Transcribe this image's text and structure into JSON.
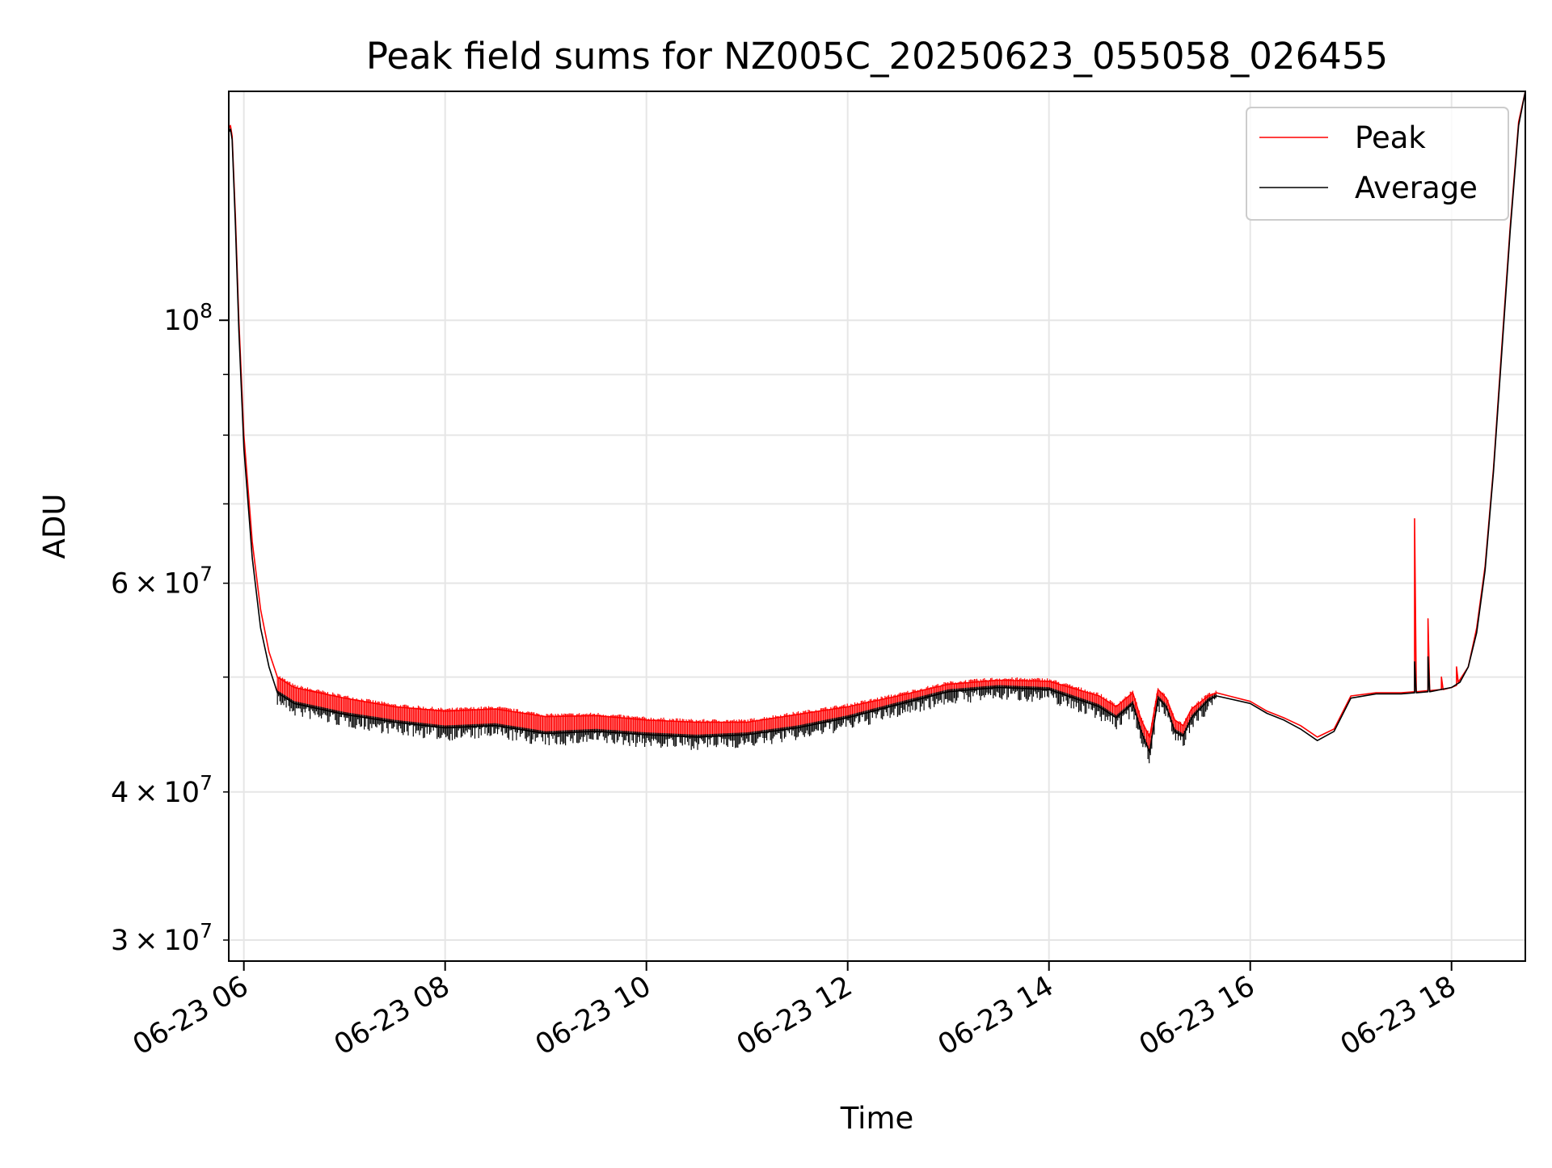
{
  "chart_data": {
    "type": "line",
    "title": "Peak field sums for NZ005C_20250623_055058_026455",
    "xlabel": "Time",
    "ylabel": "ADU",
    "y_scale": "log",
    "grid": true,
    "legend_position": "top-right",
    "xlim": [
      "2025-06-23 05:51",
      "2025-06-23 18:44"
    ],
    "ylim": [
      28800000,
      156000000
    ],
    "x_ticks": [
      {
        "value": "2025-06-23 06:00",
        "label": "06-23 06"
      },
      {
        "value": "2025-06-23 08:00",
        "label": "06-23 08"
      },
      {
        "value": "2025-06-23 10:00",
        "label": "06-23 10"
      },
      {
        "value": "2025-06-23 12:00",
        "label": "06-23 12"
      },
      {
        "value": "2025-06-23 14:00",
        "label": "06-23 14"
      },
      {
        "value": "2025-06-23 16:00",
        "label": "06-23 16"
      },
      {
        "value": "2025-06-23 18:00",
        "label": "06-23 18"
      }
    ],
    "y_major_ticks": [
      {
        "value": 100000000,
        "base": "10",
        "exp": "8"
      }
    ],
    "y_minor_ticks": [
      {
        "value": 30000000,
        "coef": "3",
        "base": "10",
        "exp": "7"
      },
      {
        "value": 40000000,
        "coef": "4",
        "base": "10",
        "exp": "7"
      },
      {
        "value": 50000000
      },
      {
        "value": 60000000,
        "coef": "6",
        "base": "10",
        "exp": "7"
      },
      {
        "value": 70000000
      },
      {
        "value": 80000000
      },
      {
        "value": 90000000
      }
    ],
    "series": [
      {
        "name": "Peak",
        "color": "#ff0000",
        "points": [
          [
            "2025-06-23 05:51",
            145000000.0
          ],
          [
            "2025-06-23 05:52",
            146000000.0
          ],
          [
            "2025-06-23 05:53",
            143000000.0
          ],
          [
            "2025-06-23 05:55",
            122000000.0
          ],
          [
            "2025-06-23 05:57",
            100000000.0
          ],
          [
            "2025-06-23 06:00",
            80000000.0
          ],
          [
            "2025-06-23 06:05",
            65000000.0
          ],
          [
            "2025-06-23 06:10",
            57000000.0
          ],
          [
            "2025-06-23 06:15",
            52500000.0
          ],
          [
            "2025-06-23 06:20",
            50000000.0
          ],
          [
            "2025-06-23 06:30",
            49000000.0
          ],
          [
            "2025-06-23 07:00",
            48000000.0
          ],
          [
            "2025-06-23 07:30",
            47200000.0
          ],
          [
            "2025-06-23 08:00",
            46800000.0
          ],
          [
            "2025-06-23 08:30",
            47000000.0
          ],
          [
            "2025-06-23 09:00",
            46300000.0
          ],
          [
            "2025-06-23 09:30",
            46400000.0
          ],
          [
            "2025-06-23 10:00",
            46000000.0
          ],
          [
            "2025-06-23 10:30",
            45800000.0
          ],
          [
            "2025-06-23 11:00",
            45800000.0
          ],
          [
            "2025-06-23 11:30",
            46500000.0
          ],
          [
            "2025-06-23 12:00",
            47200000.0
          ],
          [
            "2025-06-23 12:30",
            48200000.0
          ],
          [
            "2025-06-23 13:00",
            49300000.0
          ],
          [
            "2025-06-23 13:30",
            49700000.0
          ],
          [
            "2025-06-23 14:00",
            49600000.0
          ],
          [
            "2025-06-23 14:30",
            48200000.0
          ],
          [
            "2025-06-23 14:40",
            47200000.0
          ],
          [
            "2025-06-23 14:50",
            48500000.0
          ],
          [
            "2025-06-23 14:55",
            46000000.0
          ],
          [
            "2025-06-23 15:00",
            44500000.0
          ],
          [
            "2025-06-23 15:05",
            48800000.0
          ],
          [
            "2025-06-23 15:10",
            48000000.0
          ],
          [
            "2025-06-23 15:15",
            46000000.0
          ],
          [
            "2025-06-23 15:20",
            45500000.0
          ],
          [
            "2025-06-23 15:25",
            47000000.0
          ],
          [
            "2025-06-23 15:35",
            48200000.0
          ],
          [
            "2025-06-23 15:40",
            48500000.0
          ],
          [
            "2025-06-23 16:00",
            47700000.0
          ],
          [
            "2025-06-23 16:10",
            46800000.0
          ],
          [
            "2025-06-23 16:20",
            46200000.0
          ],
          [
            "2025-06-23 16:30",
            45500000.0
          ],
          [
            "2025-06-23 16:40",
            44500000.0
          ],
          [
            "2025-06-23 16:50",
            45200000.0
          ],
          [
            "2025-06-23 17:00",
            48200000.0
          ],
          [
            "2025-06-23 17:15",
            48500000.0
          ],
          [
            "2025-06-23 17:30",
            48500000.0
          ],
          [
            "2025-06-23 17:38",
            48600000.0
          ],
          [
            "2025-06-23 17:38",
            68000000.0
          ],
          [
            "2025-06-23 17:39",
            48600000.0
          ],
          [
            "2025-06-23 17:46",
            48700000.0
          ],
          [
            "2025-06-23 17:46",
            56000000.0
          ],
          [
            "2025-06-23 17:47",
            48700000.0
          ],
          [
            "2025-06-23 17:54",
            48800000.0
          ],
          [
            "2025-06-23 17:54",
            50000000.0
          ],
          [
            "2025-06-23 17:55",
            48800000.0
          ],
          [
            "2025-06-23 18:00",
            49000000.0
          ],
          [
            "2025-06-23 18:03",
            49200000.0
          ],
          [
            "2025-06-23 18:03",
            51000000.0
          ],
          [
            "2025-06-23 18:04",
            49500000.0
          ],
          [
            "2025-06-23 18:10",
            51000000.0
          ],
          [
            "2025-06-23 18:15",
            55000000.0
          ],
          [
            "2025-06-23 18:20",
            62000000.0
          ],
          [
            "2025-06-23 18:25",
            75000000.0
          ],
          [
            "2025-06-23 18:30",
            95000000.0
          ],
          [
            "2025-06-23 18:35",
            120000000.0
          ],
          [
            "2025-06-23 18:40",
            147000000.0
          ],
          [
            "2025-06-23 18:44",
            156000000.0
          ]
        ]
      },
      {
        "name": "Average",
        "color": "#000000",
        "points": [
          [
            "2025-06-23 05:51",
            144000000.0
          ],
          [
            "2025-06-23 05:52",
            145000000.0
          ],
          [
            "2025-06-23 05:53",
            142000000.0
          ],
          [
            "2025-06-23 05:55",
            120000000.0
          ],
          [
            "2025-06-23 05:57",
            98000000.0
          ],
          [
            "2025-06-23 06:00",
            78000000.0
          ],
          [
            "2025-06-23 06:05",
            63000000.0
          ],
          [
            "2025-06-23 06:10",
            55000000.0
          ],
          [
            "2025-06-23 06:15",
            51000000.0
          ],
          [
            "2025-06-23 06:20",
            48500000.0
          ],
          [
            "2025-06-23 06:30",
            47500000.0
          ],
          [
            "2025-06-23 07:00",
            46500000.0
          ],
          [
            "2025-06-23 07:30",
            45800000.0
          ],
          [
            "2025-06-23 08:00",
            45300000.0
          ],
          [
            "2025-06-23 08:30",
            45500000.0
          ],
          [
            "2025-06-23 09:00",
            44800000.0
          ],
          [
            "2025-06-23 09:30",
            45000000.0
          ],
          [
            "2025-06-23 10:00",
            44700000.0
          ],
          [
            "2025-06-23 10:30",
            44500000.0
          ],
          [
            "2025-06-23 11:00",
            44700000.0
          ],
          [
            "2025-06-23 11:30",
            45300000.0
          ],
          [
            "2025-06-23 12:00",
            46200000.0
          ],
          [
            "2025-06-23 12:30",
            47400000.0
          ],
          [
            "2025-06-23 13:00",
            48600000.0
          ],
          [
            "2025-06-23 13:30",
            49000000.0
          ],
          [
            "2025-06-23 14:00",
            48800000.0
          ],
          [
            "2025-06-23 14:30",
            47200000.0
          ],
          [
            "2025-06-23 14:40",
            46200000.0
          ],
          [
            "2025-06-23 14:50",
            47500000.0
          ],
          [
            "2025-06-23 14:55",
            45000000.0
          ],
          [
            "2025-06-23 15:00",
            43200000.0
          ],
          [
            "2025-06-23 15:05",
            48000000.0
          ],
          [
            "2025-06-23 15:10",
            47200000.0
          ],
          [
            "2025-06-23 15:15",
            45000000.0
          ],
          [
            "2025-06-23 15:20",
            44600000.0
          ],
          [
            "2025-06-23 15:25",
            46200000.0
          ],
          [
            "2025-06-23 15:35",
            47800000.0
          ],
          [
            "2025-06-23 15:40",
            48200000.0
          ],
          [
            "2025-06-23 16:00",
            47500000.0
          ],
          [
            "2025-06-23 16:10",
            46600000.0
          ],
          [
            "2025-06-23 16:20",
            46000000.0
          ],
          [
            "2025-06-23 16:30",
            45200000.0
          ],
          [
            "2025-06-23 16:40",
            44200000.0
          ],
          [
            "2025-06-23 16:50",
            45000000.0
          ],
          [
            "2025-06-23 17:00",
            48000000.0
          ],
          [
            "2025-06-23 17:15",
            48400000.0
          ],
          [
            "2025-06-23 17:30",
            48400000.0
          ],
          [
            "2025-06-23 17:38",
            48500000.0
          ],
          [
            "2025-06-23 17:38",
            51500000.0
          ],
          [
            "2025-06-23 17:39",
            48500000.0
          ],
          [
            "2025-06-23 17:46",
            48600000.0
          ],
          [
            "2025-06-23 17:46",
            52000000.0
          ],
          [
            "2025-06-23 17:47",
            48600000.0
          ],
          [
            "2025-06-23 18:00",
            49000000.0
          ],
          [
            "2025-06-23 18:05",
            49500000.0
          ],
          [
            "2025-06-23 18:10",
            51000000.0
          ],
          [
            "2025-06-23 18:15",
            54500000.0
          ],
          [
            "2025-06-23 18:20",
            61500000.0
          ],
          [
            "2025-06-23 18:25",
            74500000.0
          ],
          [
            "2025-06-23 18:30",
            94000000.0
          ],
          [
            "2025-06-23 18:35",
            119000000.0
          ],
          [
            "2025-06-23 18:40",
            146000000.0
          ],
          [
            "2025-06-23 18:44",
            156000000.0
          ]
        ]
      }
    ]
  }
}
